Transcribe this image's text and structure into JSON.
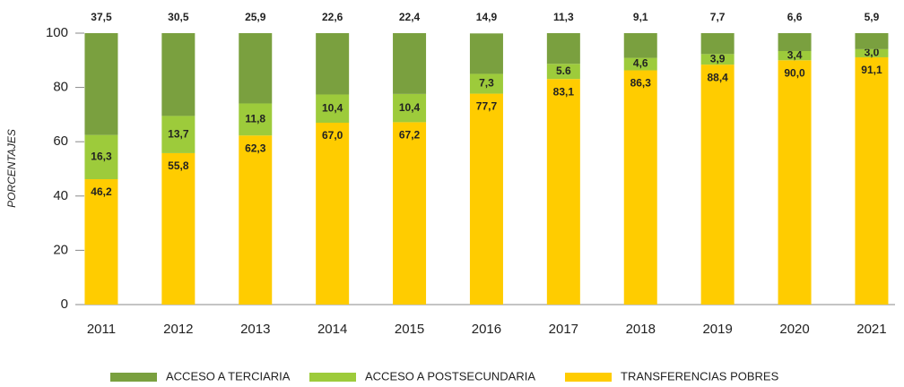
{
  "chart_data": {
    "type": "stacked-bar",
    "y_label": "PORCENTAJES",
    "categories": [
      "2011",
      "2012",
      "2013",
      "2014",
      "2015",
      "2016",
      "2017",
      "2018",
      "2019",
      "2020",
      "2021"
    ],
    "series": [
      {
        "name": "TRANSFERENCIAS POBRES",
        "color": "#ffcc00",
        "values": [
          46.2,
          55.8,
          62.3,
          67.0,
          67.2,
          77.7,
          83.1,
          86.3,
          88.4,
          90.0,
          91.1
        ],
        "value_labels": [
          "46,2",
          "55,8",
          "62,3",
          "67,0",
          "67,2",
          "77,7",
          "83,1",
          "86,3",
          "88,4",
          "90,0",
          "91,1"
        ]
      },
      {
        "name": "ACCESO A POSTSECUNDARIA",
        "color": "#9dcb3b",
        "values": [
          16.3,
          13.7,
          11.8,
          10.4,
          10.4,
          7.3,
          5.6,
          4.6,
          3.9,
          3.4,
          3.0
        ],
        "value_labels": [
          "16,3",
          "13,7",
          "11,8",
          "10,4",
          "10,4",
          "7,3",
          "5.6",
          "4,6",
          "3,9",
          "3,4",
          "3,0"
        ]
      },
      {
        "name": "ACCESO A TERCIARIA",
        "color": "#7aa03f",
        "values": [
          37.5,
          30.5,
          25.9,
          22.6,
          22.4,
          14.9,
          11.3,
          9.1,
          7.7,
          6.6,
          5.9
        ],
        "value_labels": [
          "37,5",
          "30,5",
          "25,9",
          "22,6",
          "22,4",
          "14,9",
          "11,3",
          "9,1",
          "7,7",
          "6,6",
          "5,9"
        ]
      }
    ],
    "ylim": [
      0,
      100
    ],
    "yticks": [
      0,
      20,
      40,
      60,
      80,
      100
    ],
    "grid": false
  }
}
